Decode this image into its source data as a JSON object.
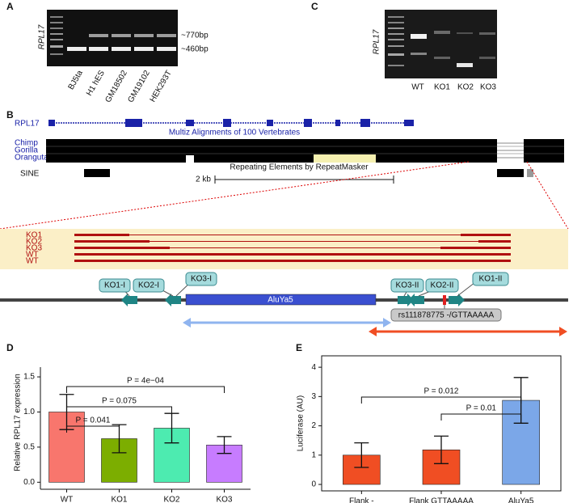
{
  "panel_a": {
    "label": "A",
    "gene": "RPL17",
    "bands": [
      "~770bp",
      "~460bp"
    ],
    "lanes": [
      "BJ5ta",
      "H1 hES",
      "GM18502",
      "GM19102",
      "HEK293T"
    ]
  },
  "panel_b": {
    "label": "B",
    "gene_track": "RPL17",
    "alignment_title": "Multiz Alignments of 100 Vertebrates",
    "species": [
      "Chimp",
      "Gorilla",
      "Orangutan"
    ],
    "repeat_title": "Repeating Elements by RepeatMasker",
    "repeat_track": "SINE",
    "scale": "2 kb",
    "zoom_tracks": [
      "KO1",
      "KO2",
      "KO3",
      "WT",
      "WT"
    ],
    "element": "AluYa5",
    "primers": [
      "KO1-I",
      "KO2-I",
      "KO3-I",
      "KO3-II",
      "KO2-II",
      "KO1-II"
    ],
    "variant": "rs111878775 -/GTTAAAAA"
  },
  "panel_c": {
    "label": "C",
    "gene": "RPL17",
    "lanes": [
      "WT",
      "KO1",
      "KO2",
      "KO3"
    ]
  },
  "chart_data": [
    {
      "type": "bar",
      "label": "D",
      "y_label": "Relative RPL17 expression",
      "categories": [
        "WT",
        "KO1",
        "KO2",
        "KO3"
      ],
      "values": [
        1.0,
        0.62,
        0.77,
        0.53
      ],
      "errors": [
        0.25,
        0.2,
        0.21,
        0.12
      ],
      "colors": [
        "#f8766d",
        "#7cae00",
        "#4debb0",
        "#c77cff"
      ],
      "ylim": [
        -0.1,
        1.8
      ],
      "yticks": [
        {
          "value": 0,
          "label": "0.0"
        },
        0.5,
        {
          "value": 1,
          "label": "1.0"
        },
        1.5
      ],
      "annotations": [
        {
          "from": "WT",
          "to": "KO3",
          "text": "P = 4e−04"
        },
        {
          "from": "WT",
          "to": "KO2",
          "text": "P = 0.075"
        },
        {
          "from": "WT",
          "to": "KO1",
          "text": "P = 0.041"
        }
      ]
    },
    {
      "type": "bar",
      "label": "E",
      "y_label": "Luciferase (AU)",
      "categories": [
        "Flank -",
        "Flank GTTAAAAA",
        "AluYa5"
      ],
      "values": [
        1.0,
        1.18,
        2.87
      ],
      "errors": [
        0.42,
        0.47,
        0.78
      ],
      "colors": [
        "#f04e23",
        "#f04e23",
        "#7ba7e8"
      ],
      "ylim": [
        -0.22,
        4.39
      ],
      "yticks": [
        0,
        1,
        2,
        3,
        4
      ],
      "annotations": [
        {
          "from": "Flank -",
          "to": "AluYa5",
          "text": "P = 0.012"
        },
        {
          "from": "Flank GTTAAAAA",
          "to": "AluYa5",
          "text": "P = 0.01"
        }
      ]
    }
  ]
}
